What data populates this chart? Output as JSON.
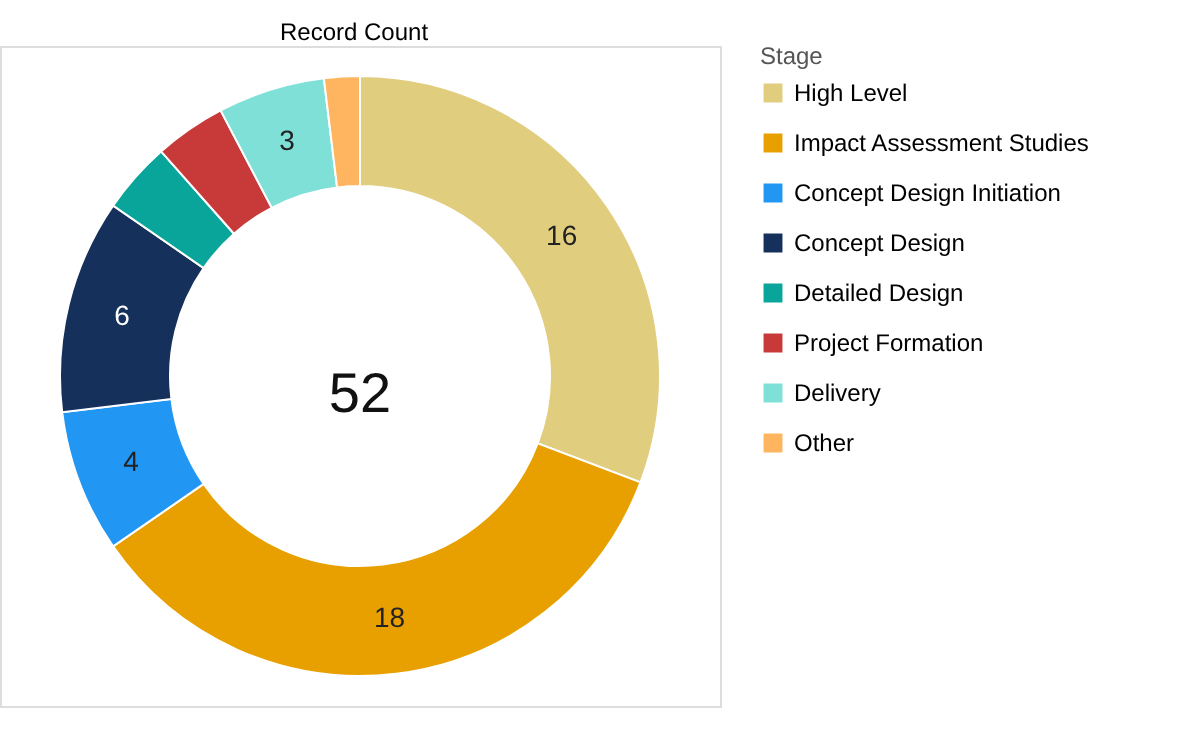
{
  "chart_data": {
    "type": "donut",
    "title": "Record Count",
    "legend_title": "Stage",
    "legend": "right",
    "categories": [
      "High Level",
      "Impact Assessment Studies",
      "Concept Design Initiation",
      "Concept Design",
      "Detailed Design",
      "Project Formation",
      "Delivery",
      "Other"
    ],
    "values": [
      16,
      18,
      4,
      6,
      2,
      2,
      3,
      1
    ],
    "colors": [
      "#e0cd7e",
      "#e8a000",
      "#2196f3",
      "#16305c",
      "#0aa59a",
      "#c83a3a",
      "#7fe0d8",
      "#ffb55f"
    ],
    "value_labels": [
      "16",
      "18",
      "4",
      "6",
      null,
      null,
      "3",
      null
    ],
    "annotations": [
      "52"
    ]
  }
}
